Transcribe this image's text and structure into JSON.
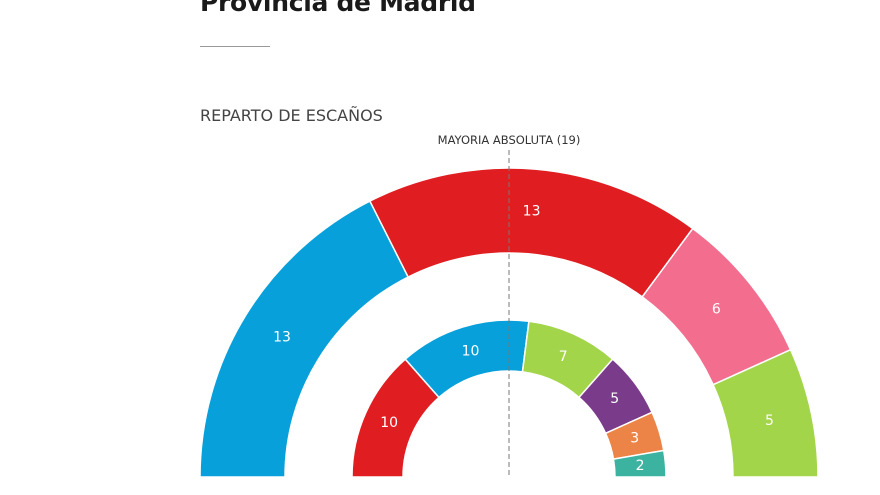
{
  "header": {
    "title": "Provincia de Madrid",
    "subtitle": "REPARTO DE ESCAÑOS"
  },
  "chart_data": {
    "type": "pie",
    "subtype": "parliament-semicircle",
    "title": "REPARTO DE ESCAÑOS",
    "majority": {
      "label": "MAYORIA ABSOLUTA (19)",
      "value": 19
    },
    "total_seats": 37,
    "rings": [
      {
        "name": "outer",
        "segments": [
          {
            "value": 13,
            "color": "#08a0da"
          },
          {
            "value": 13,
            "color": "#e01e22"
          },
          {
            "value": 6,
            "color": "#f36e8e"
          },
          {
            "value": 5,
            "color": "#a3d54b"
          }
        ]
      },
      {
        "name": "inner",
        "segments": [
          {
            "value": 10,
            "color": "#e01e22"
          },
          {
            "value": 10,
            "color": "#08a0da"
          },
          {
            "value": 7,
            "color": "#a3d54b"
          },
          {
            "value": 5,
            "color": "#7a3b8b"
          },
          {
            "value": 3,
            "color": "#ec8447"
          },
          {
            "value": 2,
            "color": "#3bb3a0"
          }
        ]
      }
    ]
  }
}
